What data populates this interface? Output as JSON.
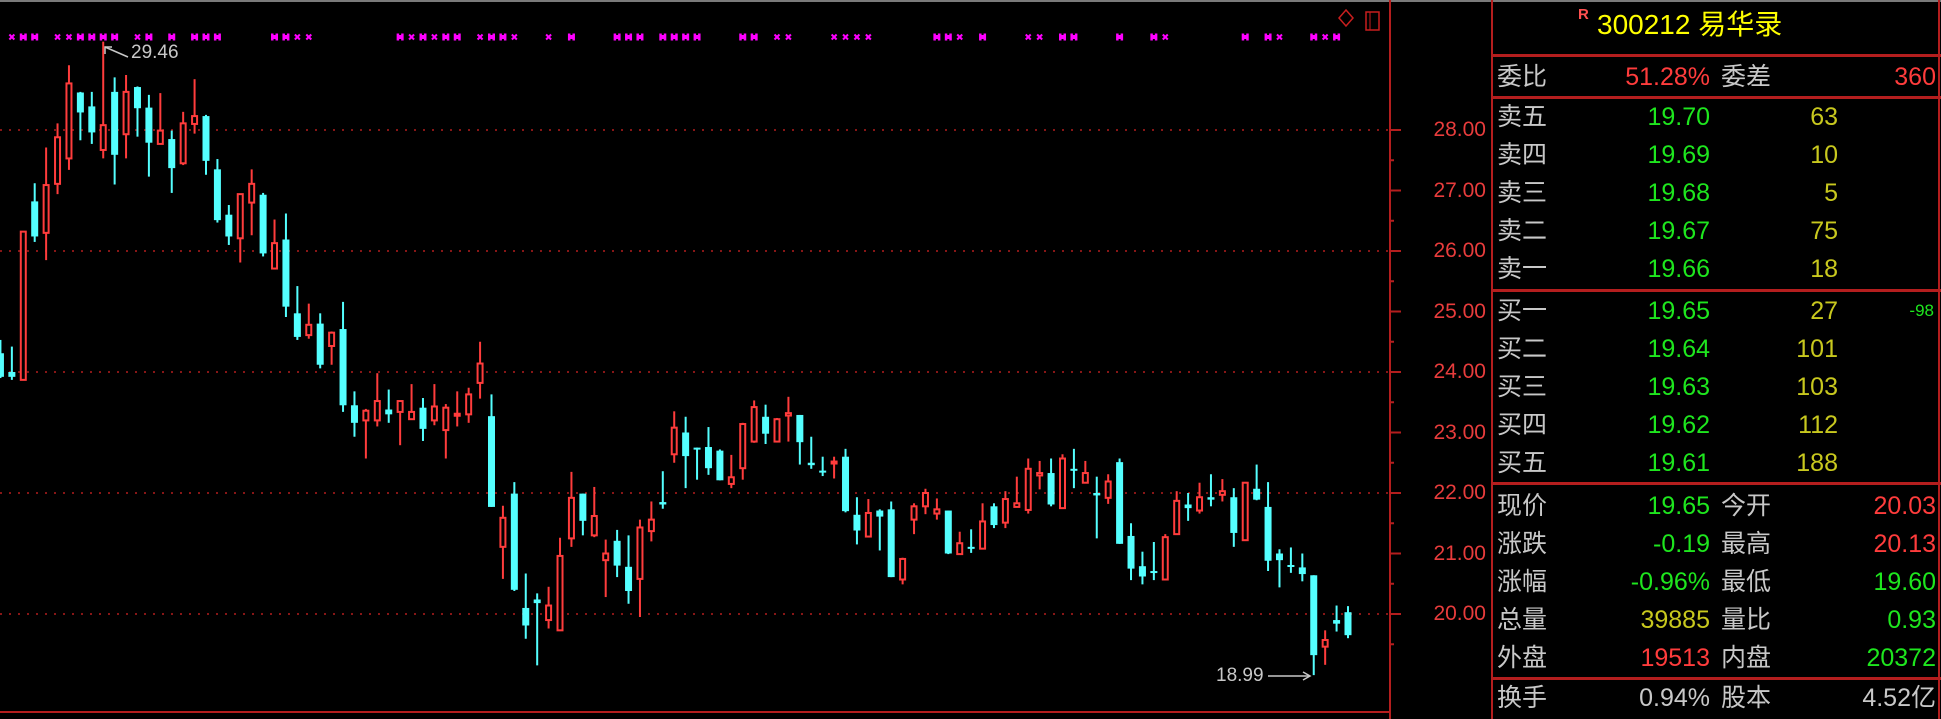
{
  "header": {
    "badge": "R",
    "code_name": "300212 易华录"
  },
  "toolbar_icons": [
    "diamond-icon",
    "square-icon"
  ],
  "colors": {
    "up": "#ff3c3c",
    "down": "#54ffff",
    "signal": "#ff00ff",
    "grid": "#b41e1e",
    "title": "#ffff00"
  },
  "order_ratio": {
    "label1": "委比",
    "value1": "51.28%",
    "label2": "委差",
    "value2": "360"
  },
  "sells": [
    {
      "label": "卖五",
      "price": "19.70",
      "volume": "63"
    },
    {
      "label": "卖四",
      "price": "19.69",
      "volume": "10"
    },
    {
      "label": "卖三",
      "price": "19.68",
      "volume": "5"
    },
    {
      "label": "卖二",
      "price": "19.67",
      "volume": "75"
    },
    {
      "label": "卖一",
      "price": "19.66",
      "volume": "18"
    }
  ],
  "buys": [
    {
      "label": "买一",
      "price": "19.65",
      "volume": "27",
      "change": "-98"
    },
    {
      "label": "买二",
      "price": "19.64",
      "volume": "101",
      "change": ""
    },
    {
      "label": "买三",
      "price": "19.63",
      "volume": "103",
      "change": ""
    },
    {
      "label": "买四",
      "price": "19.62",
      "volume": "112",
      "change": ""
    },
    {
      "label": "买五",
      "price": "19.61",
      "volume": "188",
      "change": ""
    }
  ],
  "stats": [
    {
      "label1": "现价",
      "value1": "19.65",
      "color1": "green",
      "label2": "今开",
      "value2": "20.03",
      "color2": "red"
    },
    {
      "label1": "涨跌",
      "value1": "-0.19",
      "color1": "green",
      "label2": "最高",
      "value2": "20.13",
      "color2": "red"
    },
    {
      "label1": "涨幅",
      "value1": "-0.96%",
      "color1": "green",
      "label2": "最低",
      "value2": "19.60",
      "color2": "green"
    },
    {
      "label1": "总量",
      "value1": "39885",
      "color1": "yellow",
      "label2": "量比",
      "value2": "0.93",
      "color2": "green"
    },
    {
      "label1": "外盘",
      "value1": "19513",
      "color1": "red",
      "label2": "内盘",
      "value2": "20372",
      "color2": "green"
    }
  ],
  "footer": {
    "label1": "换手",
    "value1": "0.94%",
    "label2": "股本",
    "value2": "4.52亿"
  },
  "chart_data": {
    "type": "candlestick",
    "ylim": [
      18.6,
      29.9
    ],
    "yticks": [
      "28.00",
      "27.00",
      "26.00",
      "25.00",
      "24.00",
      "23.00",
      "22.00",
      "21.00",
      "20.00"
    ],
    "grid_prices": [
      28,
      26,
      24,
      22,
      20
    ],
    "annotations": {
      "high": "29.46",
      "low": "18.99"
    },
    "candles_ohlc": [
      [
        24.31,
        24.53,
        23.9,
        23.92
      ],
      [
        24.0,
        24.42,
        23.87,
        23.92
      ],
      [
        23.87,
        26.32,
        23.87,
        26.32
      ],
      [
        26.82,
        27.12,
        26.15,
        26.24
      ],
      [
        26.3,
        27.71,
        25.85,
        27.09
      ],
      [
        27.11,
        28.11,
        26.94,
        27.88
      ],
      [
        27.53,
        29.07,
        27.34,
        28.77
      ],
      [
        28.62,
        28.63,
        27.83,
        28.29
      ],
      [
        28.39,
        28.63,
        27.77,
        27.96
      ],
      [
        27.67,
        29.46,
        27.53,
        28.08
      ],
      [
        28.63,
        28.87,
        27.1,
        27.59
      ],
      [
        27.93,
        28.91,
        27.53,
        28.63
      ],
      [
        28.71,
        28.72,
        27.89,
        28.36
      ],
      [
        28.37,
        28.58,
        27.23,
        27.79
      ],
      [
        27.77,
        28.61,
        27.77,
        27.99
      ],
      [
        27.85,
        27.99,
        26.96,
        27.37
      ],
      [
        27.45,
        28.3,
        27.42,
        28.11
      ],
      [
        28.1,
        28.84,
        27.94,
        28.23
      ],
      [
        28.23,
        28.25,
        27.26,
        27.49
      ],
      [
        27.35,
        27.52,
        26.47,
        26.51
      ],
      [
        26.6,
        26.76,
        26.1,
        26.24
      ],
      [
        26.21,
        26.95,
        25.81,
        26.94
      ],
      [
        26.8,
        27.35,
        26.26,
        27.11
      ],
      [
        26.93,
        26.96,
        25.91,
        25.96
      ],
      [
        25.71,
        26.52,
        25.71,
        26.13
      ],
      [
        26.19,
        26.62,
        24.91,
        25.08
      ],
      [
        24.97,
        25.42,
        24.53,
        24.58
      ],
      [
        24.61,
        25.13,
        24.55,
        24.78
      ],
      [
        24.8,
        24.97,
        24.06,
        24.12
      ],
      [
        24.43,
        24.67,
        24.12,
        24.65
      ],
      [
        24.71,
        25.16,
        23.34,
        23.45
      ],
      [
        23.45,
        23.68,
        22.93,
        23.16
      ],
      [
        23.2,
        23.39,
        22.57,
        23.36
      ],
      [
        23.2,
        23.98,
        23.1,
        23.52
      ],
      [
        23.38,
        23.71,
        23.16,
        23.3
      ],
      [
        23.34,
        23.53,
        22.79,
        23.52
      ],
      [
        23.22,
        23.8,
        23.21,
        23.34
      ],
      [
        23.41,
        23.57,
        22.86,
        23.06
      ],
      [
        23.2,
        23.8,
        23.12,
        23.43
      ],
      [
        23.04,
        23.47,
        22.57,
        23.41
      ],
      [
        23.3,
        23.68,
        23.1,
        23.31
      ],
      [
        23.3,
        23.74,
        23.16,
        23.63
      ],
      [
        23.82,
        24.5,
        23.56,
        24.14
      ],
      [
        23.27,
        23.63,
        21.77,
        21.77
      ],
      [
        21.11,
        21.79,
        20.58,
        21.59
      ],
      [
        21.99,
        22.18,
        20.38,
        20.4
      ],
      [
        20.1,
        20.67,
        19.59,
        19.81
      ],
      [
        20.24,
        20.34,
        19.15,
        20.18
      ],
      [
        19.9,
        20.45,
        19.76,
        20.14
      ],
      [
        19.73,
        21.26,
        19.73,
        20.96
      ],
      [
        21.25,
        22.35,
        21.11,
        21.92
      ],
      [
        21.99,
        21.99,
        21.3,
        21.54
      ],
      [
        21.3,
        22.1,
        21.27,
        21.62
      ],
      [
        20.89,
        21.23,
        20.28,
        21.0
      ],
      [
        21.21,
        21.39,
        20.61,
        20.8
      ],
      [
        20.78,
        21.3,
        20.17,
        20.38
      ],
      [
        20.58,
        21.56,
        19.95,
        21.43
      ],
      [
        21.37,
        21.86,
        21.2,
        21.56
      ],
      [
        21.85,
        22.36,
        21.74,
        21.81
      ],
      [
        22.64,
        23.35,
        22.5,
        23.08
      ],
      [
        23.0,
        23.26,
        22.08,
        22.61
      ],
      [
        22.75,
        22.75,
        22.22,
        22.74
      ],
      [
        22.76,
        23.09,
        22.3,
        22.41
      ],
      [
        22.7,
        22.72,
        22.21,
        22.21
      ],
      [
        22.15,
        22.63,
        22.08,
        22.26
      ],
      [
        22.41,
        23.16,
        22.22,
        23.14
      ],
      [
        22.85,
        23.53,
        22.83,
        23.42
      ],
      [
        23.26,
        23.46,
        22.81,
        22.98
      ],
      [
        22.85,
        23.24,
        22.85,
        23.22
      ],
      [
        23.28,
        23.59,
        22.85,
        23.32
      ],
      [
        23.29,
        23.29,
        22.47,
        22.84
      ],
      [
        22.5,
        22.93,
        22.4,
        22.46
      ],
      [
        22.37,
        22.6,
        22.28,
        22.36
      ],
      [
        22.5,
        22.6,
        22.24,
        22.52
      ],
      [
        22.6,
        22.73,
        21.68,
        21.7
      ],
      [
        21.64,
        21.93,
        21.15,
        21.38
      ],
      [
        21.28,
        21.9,
        21.28,
        21.67
      ],
      [
        21.71,
        21.73,
        21.05,
        21.61
      ],
      [
        21.73,
        21.86,
        20.61,
        20.61
      ],
      [
        20.57,
        20.93,
        20.49,
        20.91
      ],
      [
        21.56,
        21.83,
        21.32,
        21.78
      ],
      [
        21.78,
        22.07,
        21.65,
        22.0
      ],
      [
        21.66,
        21.91,
        21.56,
        21.73
      ],
      [
        21.71,
        21.71,
        20.99,
        21.0
      ],
      [
        20.99,
        21.36,
        20.99,
        21.17
      ],
      [
        21.11,
        21.4,
        21.01,
        21.08
      ],
      [
        21.08,
        21.83,
        21.08,
        21.53
      ],
      [
        21.78,
        21.83,
        21.42,
        21.47
      ],
      [
        21.51,
        22.03,
        21.42,
        21.9
      ],
      [
        21.77,
        22.27,
        21.77,
        21.83
      ],
      [
        21.72,
        22.57,
        21.66,
        22.4
      ],
      [
        22.29,
        22.53,
        22.06,
        22.33
      ],
      [
        22.33,
        22.57,
        21.78,
        21.81
      ],
      [
        21.75,
        22.64,
        21.75,
        22.57
      ],
      [
        22.4,
        22.73,
        22.08,
        22.38
      ],
      [
        22.17,
        22.53,
        22.16,
        22.33
      ],
      [
        22.0,
        22.27,
        21.25,
        21.96
      ],
      [
        21.92,
        22.31,
        21.82,
        22.19
      ],
      [
        22.51,
        22.57,
        21.16,
        21.16
      ],
      [
        21.29,
        21.5,
        20.56,
        20.75
      ],
      [
        20.79,
        21.03,
        20.49,
        20.62
      ],
      [
        20.71,
        21.19,
        20.56,
        20.68
      ],
      [
        20.57,
        21.32,
        20.56,
        21.27
      ],
      [
        21.32,
        22.03,
        21.32,
        21.87
      ],
      [
        21.81,
        22.0,
        21.54,
        21.75
      ],
      [
        21.71,
        22.17,
        21.66,
        21.93
      ],
      [
        21.93,
        22.31,
        21.78,
        21.89
      ],
      [
        21.97,
        22.23,
        21.86,
        22.03
      ],
      [
        21.93,
        22.08,
        21.11,
        21.34
      ],
      [
        21.22,
        22.18,
        21.22,
        22.17
      ],
      [
        22.07,
        22.47,
        21.88,
        21.89
      ],
      [
        21.77,
        22.18,
        20.71,
        20.88
      ],
      [
        21.0,
        21.07,
        20.44,
        20.89
      ],
      [
        20.81,
        21.1,
        20.68,
        20.79
      ],
      [
        20.77,
        21.0,
        20.54,
        20.66
      ],
      [
        20.64,
        20.64,
        18.99,
        19.32
      ],
      [
        19.46,
        19.73,
        19.16,
        19.57
      ],
      [
        19.9,
        20.14,
        19.71,
        19.84
      ],
      [
        20.03,
        20.13,
        19.6,
        19.65
      ]
    ],
    "signal_marks": ".xXX.xxXXXX.xX.X.XXX....XXxx.......XxXxXX.xXXx..x.X...XXX.XXXX...XX.xx...xxxx.....XXx.X...xx.XX...X..Xx......X.Xx..XxX."
  }
}
